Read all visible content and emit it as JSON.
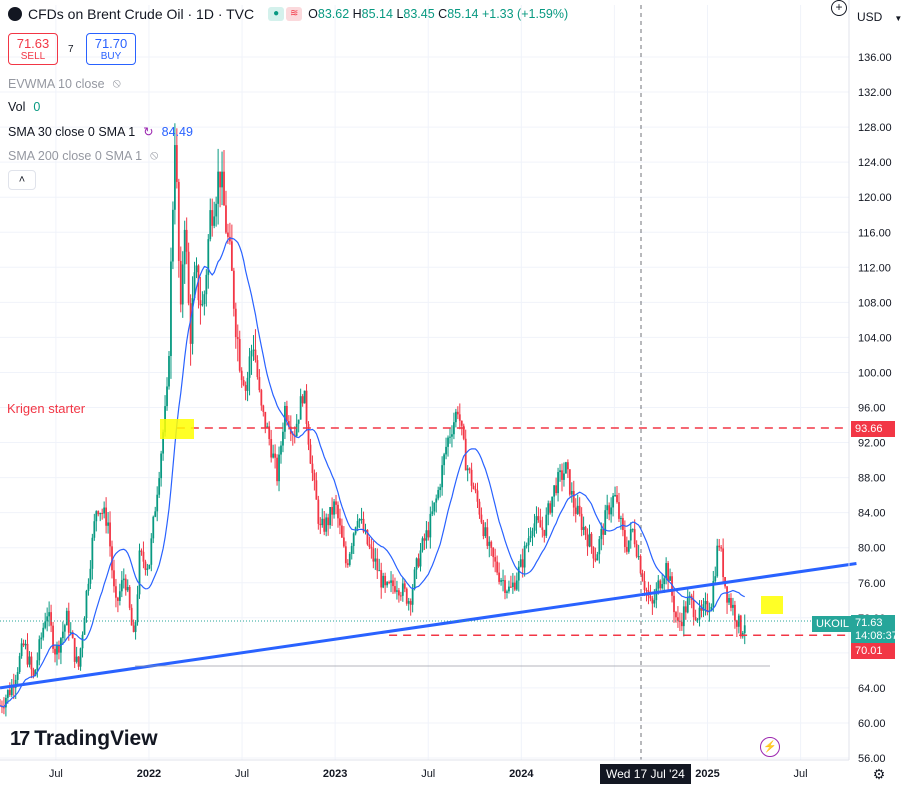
{
  "header": {
    "symbol_title": "CFDs on Brent Crude Oil · 1D · TVC",
    "ohlc": {
      "o_label": "O",
      "o": "83.62",
      "h_label": "H",
      "h": "85.14",
      "l_label": "L",
      "l": "83.45",
      "c_label": "C",
      "c": "85.14",
      "change": "+1.33 (+1.59%)"
    }
  },
  "trade": {
    "sell_price": "71.63",
    "sell_label": "SELL",
    "spread": "7",
    "buy_price": "71.70",
    "buy_label": "BUY"
  },
  "indicators": [
    {
      "label": "EVWMA 10 close",
      "value": "",
      "visible": false
    },
    {
      "label": "Vol",
      "value": "0",
      "visible": true
    },
    {
      "label": "SMA 30 close 0 SMA 1",
      "value": "84.49",
      "visible": true
    },
    {
      "label": "SMA 200 close 0 SMA 1",
      "value": "",
      "visible": false
    }
  ],
  "annotations": {
    "krigen_text": "Krigen starter"
  },
  "price_labels": {
    "level_high": "93.66",
    "current": "71.63",
    "countdown": "14:08:37",
    "level_low": "70.01",
    "ticker_tag": "UKOIL"
  },
  "currency": "USD",
  "crosshair_date": "Wed 17 Jul '24",
  "branding": "TradingView",
  "colors": {
    "candle_up": "#089981",
    "candle_down": "#f23645",
    "sma30": "#2962ff",
    "trendline": "#2962ff",
    "level_line": "#f23645",
    "highlight": "#ffff00",
    "current_price": "#26a69a"
  },
  "chart_data": {
    "type": "line",
    "title": "CFDs on Brent Crude Oil · 1D · TVC",
    "y_ticks": [
      "56.00",
      "60.00",
      "64.00",
      "68.00",
      "72.00",
      "76.00",
      "80.00",
      "84.00",
      "88.00",
      "92.00",
      "96.00",
      "100.00",
      "104.00",
      "108.00",
      "112.00",
      "116.00",
      "120.00",
      "124.00",
      "128.00",
      "132.00",
      "136.00"
    ],
    "ylim": [
      55.5,
      139.0
    ],
    "x_ticks": [
      "Jul",
      "2022",
      "Jul",
      "2023",
      "Jul",
      "2024",
      "Jul",
      "2025",
      "Jul"
    ],
    "x_tick_dates": [
      2021.5,
      2022.0,
      2022.5,
      2023.0,
      2023.5,
      2024.0,
      2024.5,
      2025.0,
      2025.5
    ],
    "xlim": [
      2021.2,
      2025.76
    ],
    "series": [
      {
        "name": "UKOIL",
        "x": [
          2021.2,
          2021.26,
          2021.33,
          2021.38,
          2021.45,
          2021.5,
          2021.56,
          2021.62,
          2021.66,
          2021.72,
          2021.78,
          2021.82,
          2021.87,
          2021.92,
          2021.95,
          2022.0,
          2022.06,
          2022.1,
          2022.14,
          2022.17,
          2022.19,
          2022.22,
          2022.25,
          2022.29,
          2022.33,
          2022.38,
          2022.44,
          2022.48,
          2022.52,
          2022.56,
          2022.6,
          2022.64,
          2022.69,
          2022.73,
          2022.78,
          2022.83,
          2022.88,
          2022.92,
          2022.96,
          2023.0,
          2023.06,
          2023.12,
          2023.18,
          2023.22,
          2023.27,
          2023.33,
          2023.4,
          2023.45,
          2023.5,
          2023.55,
          2023.6,
          2023.66,
          2023.7,
          2023.74,
          2023.78,
          2023.82,
          2023.88,
          2023.94,
          2024.0,
          2024.06,
          2024.12,
          2024.18,
          2024.24,
          2024.28,
          2024.34,
          2024.4,
          2024.46,
          2024.5,
          2024.56,
          2024.6,
          2024.66,
          2024.7,
          2024.74,
          2024.78,
          2024.84,
          2024.9,
          2024.96,
          2025.02,
          2025.06,
          2025.1,
          2025.14,
          2025.18,
          2025.2
        ],
        "values": [
          62,
          64,
          69,
          65,
          73,
          68,
          72,
          66,
          74,
          85,
          83,
          73,
          77,
          69,
          79,
          78,
          90,
          98,
          128,
          105,
          119,
          104,
          111,
          107,
          118,
          123,
          112,
          103,
          98,
          104,
          96,
          93,
          88,
          96,
          93,
          98,
          88,
          82,
          83,
          85,
          78,
          84,
          80,
          78,
          75,
          76,
          74,
          79,
          82,
          86,
          92,
          96,
          90,
          87,
          84,
          80,
          77,
          75,
          78,
          83,
          82,
          87,
          89,
          85,
          82,
          79,
          84,
          86,
          80,
          82,
          76,
          73,
          76,
          78,
          71,
          74,
          72,
          74,
          81,
          75,
          73,
          70.5,
          71.63
        ]
      }
    ],
    "indicators": {
      "sma30_last": 84.49,
      "trendline": {
        "x": [
          2021.2,
          2025.8
        ],
        "y": [
          64.0,
          78.2
        ]
      },
      "horizontal_levels": [
        93.66,
        70.01
      ]
    }
  }
}
